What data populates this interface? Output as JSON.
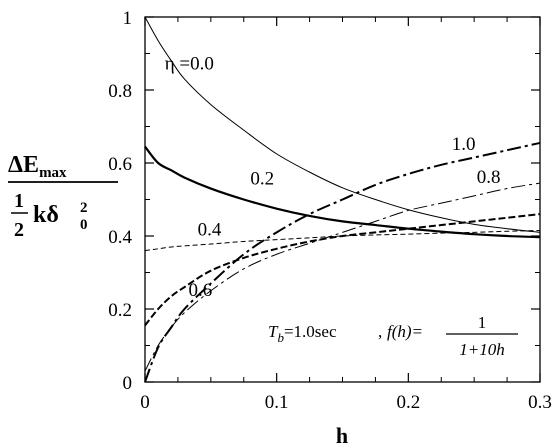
{
  "chart_data": {
    "type": "line",
    "title": "",
    "xlabel": "h",
    "ylabel": {
      "numerator": "ΔE",
      "numerator_sub": "max",
      "denominator_frac_num": "1",
      "denominator_frac_den": "2",
      "denominator_var": "kδ",
      "denominator_sub": "0",
      "denominator_sup": "2"
    },
    "xlim": [
      0,
      0.3
    ],
    "ylim": [
      0,
      1
    ],
    "xticks": [
      "0",
      "0.1",
      "0.2",
      "0.3"
    ],
    "yticks": [
      "0",
      "0.2",
      "0.4",
      "0.6",
      "0.8",
      "1"
    ],
    "grid": false,
    "x": [
      0,
      0.01,
      0.02,
      0.03,
      0.05,
      0.075,
      0.1,
      0.125,
      0.15,
      0.175,
      0.2,
      0.225,
      0.25,
      0.275,
      0.3
    ],
    "series": [
      {
        "name": "η =0.0",
        "style": "thin-solid",
        "values": [
          1.0,
          0.935,
          0.88,
          0.83,
          0.76,
          0.69,
          0.625,
          0.575,
          0.532,
          0.5,
          0.472,
          0.45,
          0.432,
          0.42,
          0.41
        ]
      },
      {
        "name": "0.2",
        "style": "thick-solid",
        "values": [
          0.645,
          0.6,
          0.58,
          0.56,
          0.53,
          0.5,
          0.475,
          0.455,
          0.44,
          0.43,
          0.42,
          0.412,
          0.405,
          0.4,
          0.397
        ]
      },
      {
        "name": "0.4",
        "style": "thin-dashed",
        "values": [
          0.36,
          0.365,
          0.37,
          0.373,
          0.378,
          0.385,
          0.39,
          0.395,
          0.4,
          0.403,
          0.405,
          0.408,
          0.41,
          0.413,
          0.415
        ]
      },
      {
        "name": "0.6",
        "style": "thick-dashed",
        "values": [
          0.155,
          0.2,
          0.235,
          0.26,
          0.305,
          0.34,
          0.365,
          0.385,
          0.4,
          0.41,
          0.42,
          0.43,
          0.44,
          0.45,
          0.46
        ]
      },
      {
        "name": "0.8",
        "style": "thin-dashdot",
        "values": [
          0.03,
          0.1,
          0.15,
          0.19,
          0.25,
          0.31,
          0.35,
          0.38,
          0.41,
          0.44,
          0.47,
          0.49,
          0.51,
          0.53,
          0.545
        ]
      },
      {
        "name": "1.0",
        "style": "thick-dashdot",
        "values": [
          0.0,
          0.095,
          0.15,
          0.2,
          0.27,
          0.35,
          0.41,
          0.46,
          0.5,
          0.54,
          0.57,
          0.595,
          0.615,
          0.635,
          0.655
        ]
      }
    ],
    "curve_labels": [
      {
        "text": "η =0.0",
        "at": [
          0.015,
          0.875
        ]
      },
      {
        "text": "0.2",
        "at": [
          0.08,
          0.56
        ]
      },
      {
        "text": "0.4",
        "at": [
          0.04,
          0.42
        ]
      },
      {
        "text": "0.6",
        "at": [
          0.033,
          0.255
        ]
      },
      {
        "text": "0.8",
        "at": [
          0.252,
          0.565
        ]
      },
      {
        "text": "1.0",
        "at": [
          0.233,
          0.655
        ]
      }
    ],
    "annotation": {
      "t_var": "T",
      "t_sub": "b",
      "t_value": "=1.0sec",
      "comma_part": ", ",
      "f_expr": "f(h)=",
      "frac_num": "1",
      "frac_den": "1+10h"
    }
  }
}
